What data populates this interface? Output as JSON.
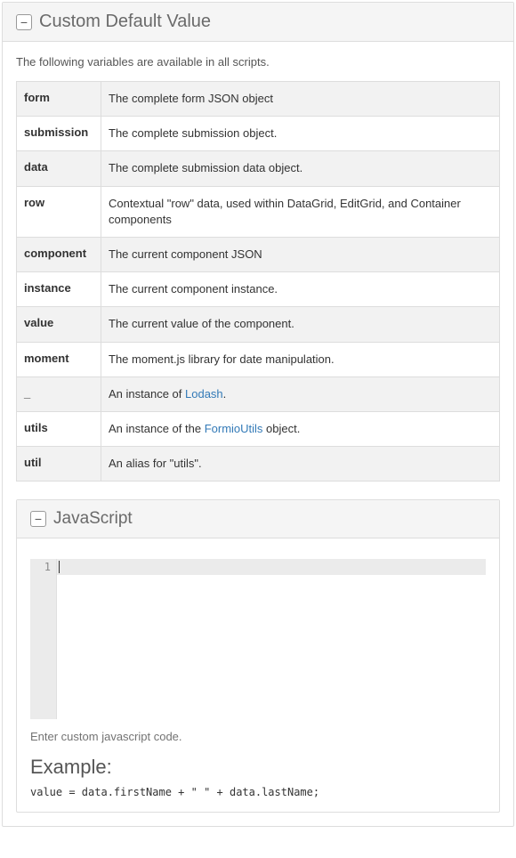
{
  "outer": {
    "title": "Custom Default Value",
    "intro": "The following variables are available in all scripts."
  },
  "variables": [
    {
      "name": "form",
      "desc": "The complete form JSON object"
    },
    {
      "name": "submission",
      "desc": "The complete submission object."
    },
    {
      "name": "data",
      "desc": "The complete submission data object."
    },
    {
      "name": "row",
      "desc": "Contextual \"row\" data, used within DataGrid, EditGrid, and Container components"
    },
    {
      "name": "component",
      "desc": "The current component JSON"
    },
    {
      "name": "instance",
      "desc": "The current component instance."
    },
    {
      "name": "value",
      "desc": "The current value of the component."
    },
    {
      "name": "moment",
      "desc": "The moment.js library for date manipulation."
    },
    {
      "name": "_",
      "desc_pre": "An instance of ",
      "link": "Lodash",
      "desc_post": "."
    },
    {
      "name": "utils",
      "desc_pre": "An instance of the ",
      "link": "FormioUtils",
      "desc_post": " object."
    },
    {
      "name": "util",
      "desc": "An alias for \"utils\"."
    }
  ],
  "js": {
    "title": "JavaScript",
    "line_no": "1",
    "help": "Enter custom javascript code.",
    "example_heading": "Example:",
    "example_code": "value = data.firstName + \" \" + data.lastName;"
  },
  "collapse_glyph": "−"
}
